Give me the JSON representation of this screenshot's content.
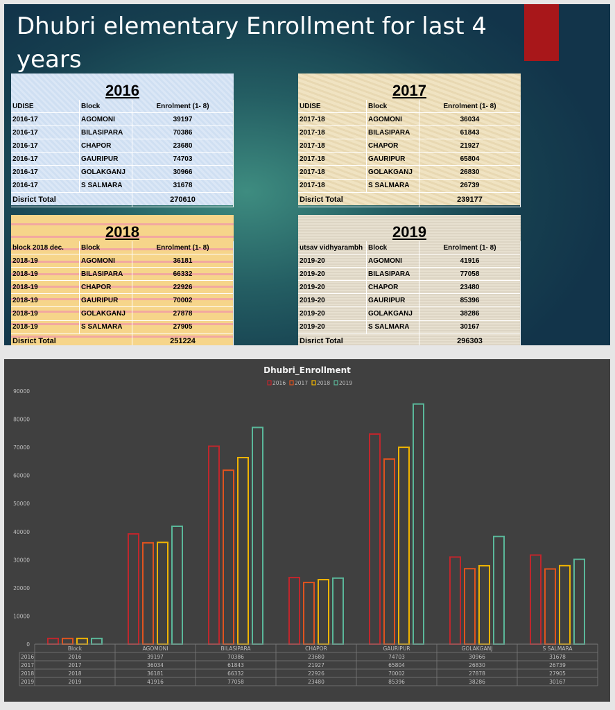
{
  "slide": {
    "title": "Dhubri elementary Enrollment for last 4 years",
    "panels": [
      {
        "year": "2016",
        "headers": [
          "UDISE",
          "Block",
          "Enrolment (1- 8)"
        ],
        "rows": [
          [
            "2016-17",
            "AGOMONI",
            "39197"
          ],
          [
            "2016-17",
            "BILASIPARA",
            "70386"
          ],
          [
            "2016-17",
            "CHAPOR",
            "23680"
          ],
          [
            "2016-17",
            "GAURIPUR",
            "74703"
          ],
          [
            "2016-17",
            "GOLAKGANJ",
            "30966"
          ],
          [
            "2016-17",
            "S SALMARA",
            "31678"
          ]
        ],
        "total_label": "Disrict Total",
        "total_value": "270610"
      },
      {
        "year": "2017",
        "headers": [
          "UDISE",
          "Block",
          "Enrolment (1- 8)"
        ],
        "rows": [
          [
            "2017-18",
            "AGOMONI",
            "36034"
          ],
          [
            "2017-18",
            "BILASIPARA",
            "61843"
          ],
          [
            "2017-18",
            "CHAPOR",
            "21927"
          ],
          [
            "2017-18",
            "GAURIPUR",
            "65804"
          ],
          [
            "2017-18",
            "GOLAKGANJ",
            "26830"
          ],
          [
            "2017-18",
            "S SALMARA",
            "26739"
          ]
        ],
        "total_label": "Disrict Total",
        "total_value": "239177"
      },
      {
        "year": "2018",
        "headers": [
          "block 2018 dec.",
          "Block",
          "Enrolment (1- 8)"
        ],
        "rows": [
          [
            "2018-19",
            "AGOMONI",
            "36181"
          ],
          [
            "2018-19",
            "BILASIPARA",
            "66332"
          ],
          [
            "2018-19",
            "CHAPOR",
            "22926"
          ],
          [
            "2018-19",
            "GAURIPUR",
            "70002"
          ],
          [
            "2018-19",
            "GOLAKGANJ",
            "27878"
          ],
          [
            "2018-19",
            "S SALMARA",
            "27905"
          ]
        ],
        "total_label": "Disrict Total",
        "total_value": "251224"
      },
      {
        "year": "2019",
        "headers": [
          "utsav vidhyarambh",
          "Block",
          "Enrolment (1- 8)"
        ],
        "rows": [
          [
            "2019-20",
            "AGOMONI",
            "41916"
          ],
          [
            "2019-20",
            "BILASIPARA",
            "77058"
          ],
          [
            "2019-20",
            "CHAPOR",
            "23480"
          ],
          [
            "2019-20",
            "GAURIPUR",
            "85396"
          ],
          [
            "2019-20",
            "GOLAKGANJ",
            "38286"
          ],
          [
            "2019-20",
            "S SALMARA",
            "30167"
          ]
        ],
        "total_label": "Disrict Total",
        "total_value": "296303"
      }
    ],
    "colors": {
      "accent_red": "#a8171a"
    }
  },
  "chart_data": {
    "type": "bar",
    "title": "Dhubri_Enrollment",
    "categories": [
      "Block",
      "AGOMONI",
      "BILASIPARA",
      "CHAPOR",
      "GAURIPUR",
      "GOLAKGANJ",
      "S SALMARA"
    ],
    "series": [
      {
        "name": "2016",
        "color": "#c0262c",
        "values": [
          2016,
          39197,
          70386,
          23680,
          74703,
          30966,
          31678
        ]
      },
      {
        "name": "2017",
        "color": "#e0531e",
        "values": [
          2017,
          36034,
          61843,
          21927,
          65804,
          26830,
          26739
        ]
      },
      {
        "name": "2018",
        "color": "#f0b400",
        "values": [
          2018,
          36181,
          66332,
          22926,
          70002,
          27878,
          27905
        ]
      },
      {
        "name": "2019",
        "color": "#5ab89a",
        "values": [
          2019,
          41916,
          77058,
          23480,
          85396,
          38286,
          30167
        ]
      }
    ],
    "ylim": [
      0,
      90000
    ],
    "yticks": [
      0,
      10000,
      20000,
      30000,
      40000,
      50000,
      60000,
      70000,
      80000,
      90000
    ],
    "legend_position": "top",
    "grid": false,
    "data_table": true
  }
}
